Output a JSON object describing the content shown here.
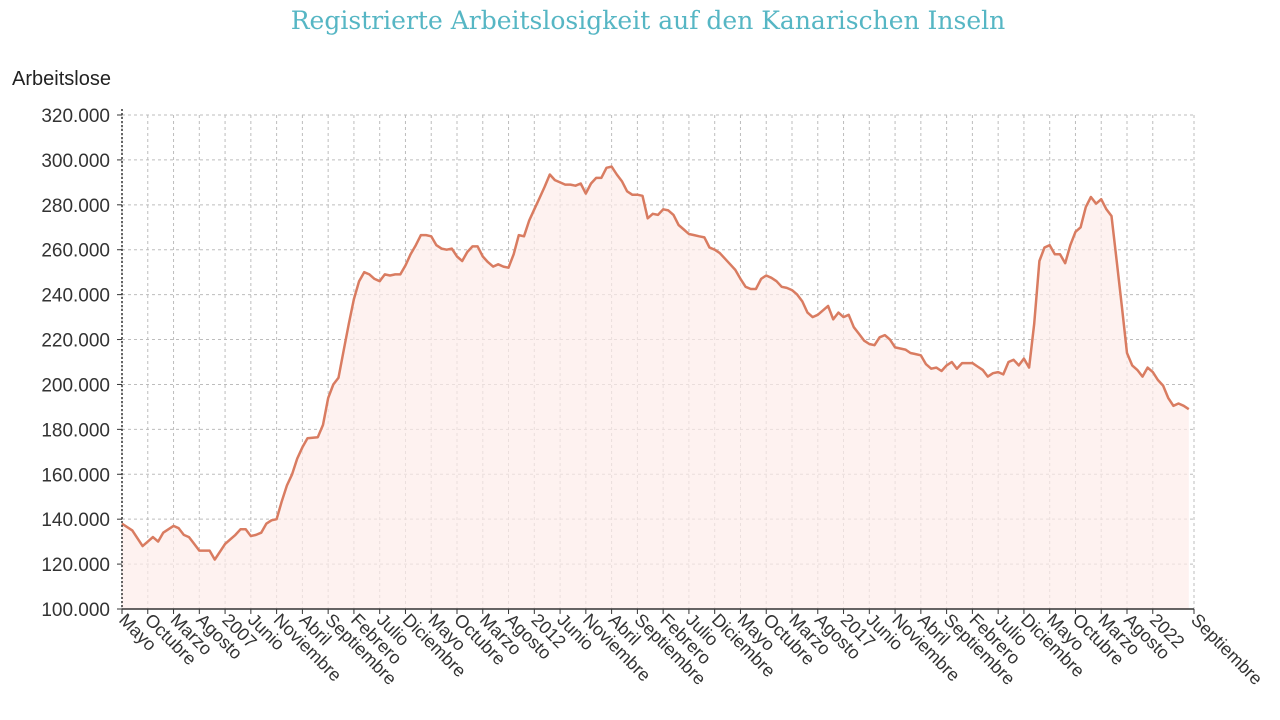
{
  "chart_data": {
    "type": "area",
    "title": "Registrierte Arbeitslosigkeit auf den Kanarischen Inseln",
    "ylabel": "Arbeitslose",
    "xlabel": "",
    "ylim": [
      100000,
      320000
    ],
    "grid": true,
    "colors": {
      "line": "#d97c61",
      "fill": "#fdecea",
      "title": "#56b6c4",
      "grid": "#bdbdbd"
    },
    "y_ticks": [
      {
        "value": 100000,
        "label": "100.000"
      },
      {
        "value": 120000,
        "label": "120.000"
      },
      {
        "value": 140000,
        "label": "140.000"
      },
      {
        "value": 160000,
        "label": "160.000"
      },
      {
        "value": 180000,
        "label": "180.000"
      },
      {
        "value": 200000,
        "label": "200.000"
      },
      {
        "value": 220000,
        "label": "220.000"
      },
      {
        "value": 240000,
        "label": "240.000"
      },
      {
        "value": 260000,
        "label": "260.000"
      },
      {
        "value": 280000,
        "label": "280.000"
      },
      {
        "value": 300000,
        "label": "300.000"
      },
      {
        "value": 320000,
        "label": "320.000"
      }
    ],
    "x_ticks": [
      {
        "month": "2005-05",
        "label": "Mayo"
      },
      {
        "month": "2005-10",
        "label": "Octubre"
      },
      {
        "month": "2006-03",
        "label": "Marzo"
      },
      {
        "month": "2006-08",
        "label": "Agosto"
      },
      {
        "month": "2007-01",
        "label": "2007"
      },
      {
        "month": "2007-06",
        "label": "Junio"
      },
      {
        "month": "2007-11",
        "label": "Noviembre"
      },
      {
        "month": "2008-04",
        "label": "Abril"
      },
      {
        "month": "2008-09",
        "label": "Septiembre"
      },
      {
        "month": "2009-02",
        "label": "Febrero"
      },
      {
        "month": "2009-07",
        "label": "Julio"
      },
      {
        "month": "2009-12",
        "label": "Diciembre"
      },
      {
        "month": "2010-05",
        "label": "Mayo"
      },
      {
        "month": "2010-10",
        "label": "Octubre"
      },
      {
        "month": "2011-03",
        "label": "Marzo"
      },
      {
        "month": "2011-08",
        "label": "Agosto"
      },
      {
        "month": "2012-01",
        "label": "2012"
      },
      {
        "month": "2012-06",
        "label": "Junio"
      },
      {
        "month": "2012-11",
        "label": "Noviembre"
      },
      {
        "month": "2013-04",
        "label": "Abril"
      },
      {
        "month": "2013-09",
        "label": "Septiembre"
      },
      {
        "month": "2014-02",
        "label": "Febrero"
      },
      {
        "month": "2014-07",
        "label": "Julio"
      },
      {
        "month": "2014-12",
        "label": "Diciembre"
      },
      {
        "month": "2015-05",
        "label": "Mayo"
      },
      {
        "month": "2015-10",
        "label": "Octubre"
      },
      {
        "month": "2016-03",
        "label": "Marzo"
      },
      {
        "month": "2016-08",
        "label": "Agosto"
      },
      {
        "month": "2017-01",
        "label": "2017"
      },
      {
        "month": "2017-06",
        "label": "Junio"
      },
      {
        "month": "2017-11",
        "label": "Noviembre"
      },
      {
        "month": "2018-04",
        "label": "Abril"
      },
      {
        "month": "2018-09",
        "label": "Septiembre"
      },
      {
        "month": "2019-02",
        "label": "Febrero"
      },
      {
        "month": "2019-07",
        "label": "Julio"
      },
      {
        "month": "2019-12",
        "label": "Diciembre"
      },
      {
        "month": "2020-05",
        "label": "Mayo"
      },
      {
        "month": "2020-10",
        "label": "Octubre"
      },
      {
        "month": "2021-03",
        "label": "Marzo"
      },
      {
        "month": "2021-08",
        "label": "Agosto"
      },
      {
        "month": "2022-01",
        "label": "2022"
      },
      {
        "month": "2022-09",
        "label": "Septiembre"
      }
    ],
    "series": [
      {
        "points": [
          [
            "2005-05",
            138000
          ],
          [
            "2005-07",
            135000
          ],
          [
            "2005-09",
            128000
          ],
          [
            "2005-10",
            130000
          ],
          [
            "2005-11",
            132000
          ],
          [
            "2005-12",
            130000
          ],
          [
            "2006-01",
            134000
          ],
          [
            "2006-03",
            137000
          ],
          [
            "2006-04",
            136000
          ],
          [
            "2006-05",
            133000
          ],
          [
            "2006-06",
            132000
          ],
          [
            "2006-07",
            129000
          ],
          [
            "2006-08",
            126000
          ],
          [
            "2006-10",
            126000
          ],
          [
            "2006-11",
            122000
          ],
          [
            "2007-01",
            129000
          ],
          [
            "2007-02",
            131000
          ],
          [
            "2007-03",
            133000
          ],
          [
            "2007-04",
            135500
          ],
          [
            "2007-05",
            135500
          ],
          [
            "2007-06",
            132500
          ],
          [
            "2007-07",
            133000
          ],
          [
            "2007-08",
            134000
          ],
          [
            "2007-09",
            138000
          ],
          [
            "2007-10",
            139500
          ],
          [
            "2007-11",
            140000
          ],
          [
            "2007-12",
            148000
          ],
          [
            "2008-01",
            155000
          ],
          [
            "2008-02",
            160000
          ],
          [
            "2008-03",
            167000
          ],
          [
            "2008-04",
            172000
          ],
          [
            "2008-05",
            176000
          ],
          [
            "2008-07",
            176500
          ],
          [
            "2008-08",
            182000
          ],
          [
            "2008-09",
            194000
          ],
          [
            "2008-10",
            200000
          ],
          [
            "2008-11",
            203000
          ],
          [
            "2008-12",
            215000
          ],
          [
            "2009-01",
            227000
          ],
          [
            "2009-02",
            238000
          ],
          [
            "2009-03",
            246000
          ],
          [
            "2009-04",
            250000
          ],
          [
            "2009-05",
            249000
          ],
          [
            "2009-06",
            247000
          ],
          [
            "2009-07",
            246000
          ],
          [
            "2009-08",
            249000
          ],
          [
            "2009-09",
            248500
          ],
          [
            "2009-10",
            249000
          ],
          [
            "2009-11",
            249000
          ],
          [
            "2009-12",
            253000
          ],
          [
            "2010-01",
            258000
          ],
          [
            "2010-02",
            262000
          ],
          [
            "2010-03",
            266500
          ],
          [
            "2010-04",
            266500
          ],
          [
            "2010-05",
            266000
          ],
          [
            "2010-06",
            262000
          ],
          [
            "2010-07",
            260500
          ],
          [
            "2010-08",
            260000
          ],
          [
            "2010-09",
            260500
          ],
          [
            "2010-10",
            257000
          ],
          [
            "2010-11",
            255000
          ],
          [
            "2010-12",
            259000
          ],
          [
            "2011-01",
            261500
          ],
          [
            "2011-02",
            261500
          ],
          [
            "2011-03",
            257000
          ],
          [
            "2011-04",
            254500
          ],
          [
            "2011-05",
            252500
          ],
          [
            "2011-06",
            253500
          ],
          [
            "2011-07",
            252500
          ],
          [
            "2011-08",
            252000
          ],
          [
            "2011-09",
            258000
          ],
          [
            "2011-10",
            266500
          ],
          [
            "2011-11",
            266000
          ],
          [
            "2011-12",
            273000
          ],
          [
            "2012-01",
            278000
          ],
          [
            "2012-02",
            283000
          ],
          [
            "2012-03",
            288000
          ],
          [
            "2012-04",
            293500
          ],
          [
            "2012-05",
            291000
          ],
          [
            "2012-06",
            290000
          ],
          [
            "2012-07",
            289000
          ],
          [
            "2012-08",
            289000
          ],
          [
            "2012-09",
            288500
          ],
          [
            "2012-10",
            289500
          ],
          [
            "2012-11",
            285000
          ],
          [
            "2012-12",
            289500
          ],
          [
            "2013-01",
            292000
          ],
          [
            "2013-02",
            292000
          ],
          [
            "2013-03",
            296500
          ],
          [
            "2013-04",
            297000
          ],
          [
            "2013-05",
            293500
          ],
          [
            "2013-06",
            290500
          ],
          [
            "2013-07",
            286000
          ],
          [
            "2013-08",
            284500
          ],
          [
            "2013-09",
            284500
          ],
          [
            "2013-10",
            284000
          ],
          [
            "2013-11",
            274000
          ],
          [
            "2013-12",
            276000
          ],
          [
            "2014-01",
            275500
          ],
          [
            "2014-02",
            278000
          ],
          [
            "2014-03",
            277500
          ],
          [
            "2014-04",
            275500
          ],
          [
            "2014-05",
            271000
          ],
          [
            "2014-06",
            269000
          ],
          [
            "2014-07",
            267000
          ],
          [
            "2014-08",
            266500
          ],
          [
            "2014-09",
            266000
          ],
          [
            "2014-10",
            265500
          ],
          [
            "2014-11",
            261000
          ],
          [
            "2014-12",
            260000
          ],
          [
            "2015-01",
            258500
          ],
          [
            "2015-02",
            256000
          ],
          [
            "2015-03",
            253500
          ],
          [
            "2015-04",
            251000
          ],
          [
            "2015-05",
            247000
          ],
          [
            "2015-06",
            243500
          ],
          [
            "2015-07",
            242500
          ],
          [
            "2015-08",
            242500
          ],
          [
            "2015-09",
            247000
          ],
          [
            "2015-10",
            248500
          ],
          [
            "2015-11",
            247500
          ],
          [
            "2015-12",
            246000
          ],
          [
            "2016-01",
            243500
          ],
          [
            "2016-02",
            243000
          ],
          [
            "2016-03",
            242000
          ],
          [
            "2016-04",
            240000
          ],
          [
            "2016-05",
            237000
          ],
          [
            "2016-06",
            232000
          ],
          [
            "2016-07",
            230000
          ],
          [
            "2016-08",
            231000
          ],
          [
            "2016-09",
            233000
          ],
          [
            "2016-10",
            235000
          ],
          [
            "2016-11",
            229000
          ],
          [
            "2016-12",
            232000
          ],
          [
            "2017-01",
            230000
          ],
          [
            "2017-02",
            231000
          ],
          [
            "2017-03",
            225500
          ],
          [
            "2017-04",
            222500
          ],
          [
            "2017-05",
            219500
          ],
          [
            "2017-06",
            218000
          ],
          [
            "2017-07",
            217500
          ],
          [
            "2017-08",
            221000
          ],
          [
            "2017-09",
            222000
          ],
          [
            "2017-10",
            220000
          ],
          [
            "2017-11",
            216500
          ],
          [
            "2017-12",
            216000
          ],
          [
            "2018-01",
            215500
          ],
          [
            "2018-02",
            214000
          ],
          [
            "2018-03",
            213500
          ],
          [
            "2018-04",
            213000
          ],
          [
            "2018-05",
            209000
          ],
          [
            "2018-06",
            207000
          ],
          [
            "2018-07",
            207500
          ],
          [
            "2018-08",
            206000
          ],
          [
            "2018-09",
            208500
          ],
          [
            "2018-10",
            210000
          ],
          [
            "2018-11",
            207000
          ],
          [
            "2018-12",
            209500
          ],
          [
            "2019-01",
            209500
          ],
          [
            "2019-02",
            209500
          ],
          [
            "2019-03",
            208000
          ],
          [
            "2019-04",
            206500
          ],
          [
            "2019-05",
            203500
          ],
          [
            "2019-06",
            205000
          ],
          [
            "2019-07",
            205500
          ],
          [
            "2019-08",
            204500
          ],
          [
            "2019-09",
            210000
          ],
          [
            "2019-10",
            211000
          ],
          [
            "2019-11",
            208500
          ],
          [
            "2019-12",
            211500
          ],
          [
            "2020-01",
            207500
          ],
          [
            "2020-02",
            227000
          ],
          [
            "2020-03",
            255000
          ],
          [
            "2020-04",
            261000
          ],
          [
            "2020-05",
            262000
          ],
          [
            "2020-06",
            258000
          ],
          [
            "2020-07",
            258000
          ],
          [
            "2020-08",
            254000
          ],
          [
            "2020-09",
            262000
          ],
          [
            "2020-10",
            268000
          ],
          [
            "2020-11",
            270000
          ],
          [
            "2020-12",
            279000
          ],
          [
            "2021-01",
            283500
          ],
          [
            "2021-02",
            280500
          ],
          [
            "2021-03",
            282500
          ],
          [
            "2021-04",
            278000
          ],
          [
            "2021-05",
            275000
          ],
          [
            "2021-06",
            255000
          ],
          [
            "2021-07",
            235000
          ],
          [
            "2021-08",
            214000
          ],
          [
            "2021-09",
            208500
          ],
          [
            "2021-10",
            206500
          ],
          [
            "2021-11",
            203500
          ],
          [
            "2021-12",
            207500
          ],
          [
            "2022-01",
            205500
          ],
          [
            "2022-02",
            202000
          ],
          [
            "2022-03",
            199500
          ],
          [
            "2022-04",
            194000
          ],
          [
            "2022-05",
            190500
          ],
          [
            "2022-06",
            191500
          ],
          [
            "2022-07",
            190500
          ],
          [
            "2022-08",
            189000
          ]
        ]
      }
    ]
  }
}
